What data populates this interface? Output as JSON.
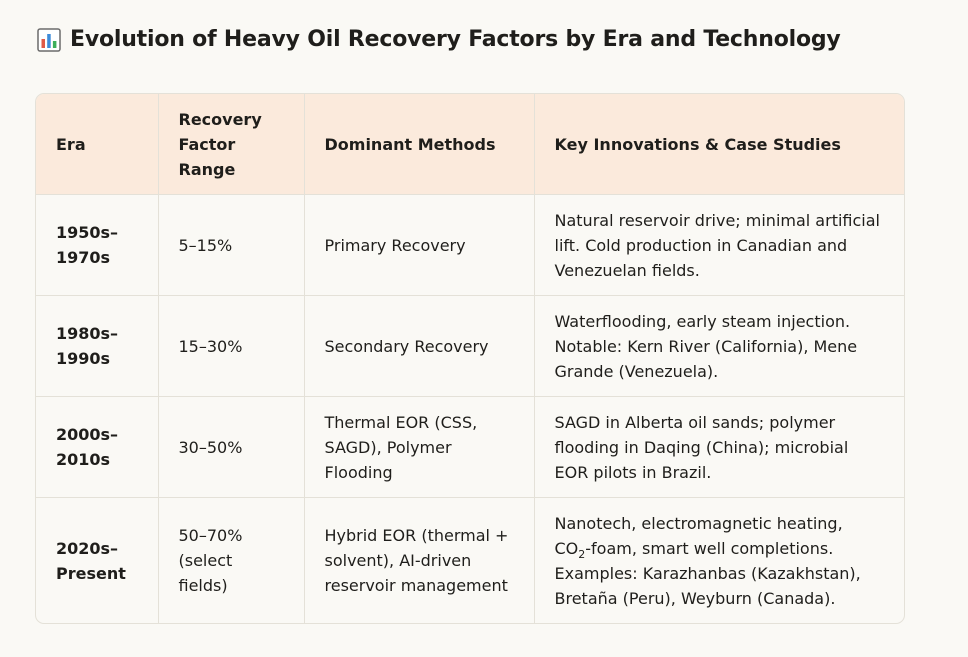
{
  "header": {
    "title": "Evolution of Heavy Oil Recovery Factors by Era and Technology",
    "icon": "bar-chart-icon"
  },
  "table": {
    "columns": [
      "Era",
      "Recovery Factor Range",
      "Dominant Methods",
      "Key Innovations & Case Studies"
    ],
    "rows": [
      {
        "era": "1950s–1970s",
        "range": "5–15%",
        "methods": "Primary Recovery",
        "innovations": "Natural reservoir drive; minimal artificial lift. Cold production in Canadian and Venezuelan fields."
      },
      {
        "era": "1980s–1990s",
        "range": "15–30%",
        "methods": "Secondary Recovery",
        "innovations": "Waterflooding, early steam injection. Notable: Kern River (California), Mene Grande (Venezuela)."
      },
      {
        "era": "2000s–2010s",
        "range": "30–50%",
        "methods": "Thermal EOR (CSS, SAGD), Polymer Flooding",
        "innovations": "SAGD in Alberta oil sands; polymer flooding in Daqing (China); microbial EOR pilots in Brazil."
      },
      {
        "era": "2020s–Present",
        "range": "50–70% (select fields)",
        "methods": "Hybrid EOR (thermal + solvent), AI-driven reservoir management",
        "innovations_pre": "Nanotech, electromagnetic heating, CO",
        "innovations_sub": "2",
        "innovations_post": "-foam, smart well completions. Examples: Karazhanbas (Kazakhstan), Bretaña (Peru), Weyburn (Canada)."
      }
    ]
  },
  "colors": {
    "background": "#faf9f5",
    "header_fill": "#fbeadc",
    "border": "#e4e1d8",
    "text": "#1f1e1b"
  }
}
